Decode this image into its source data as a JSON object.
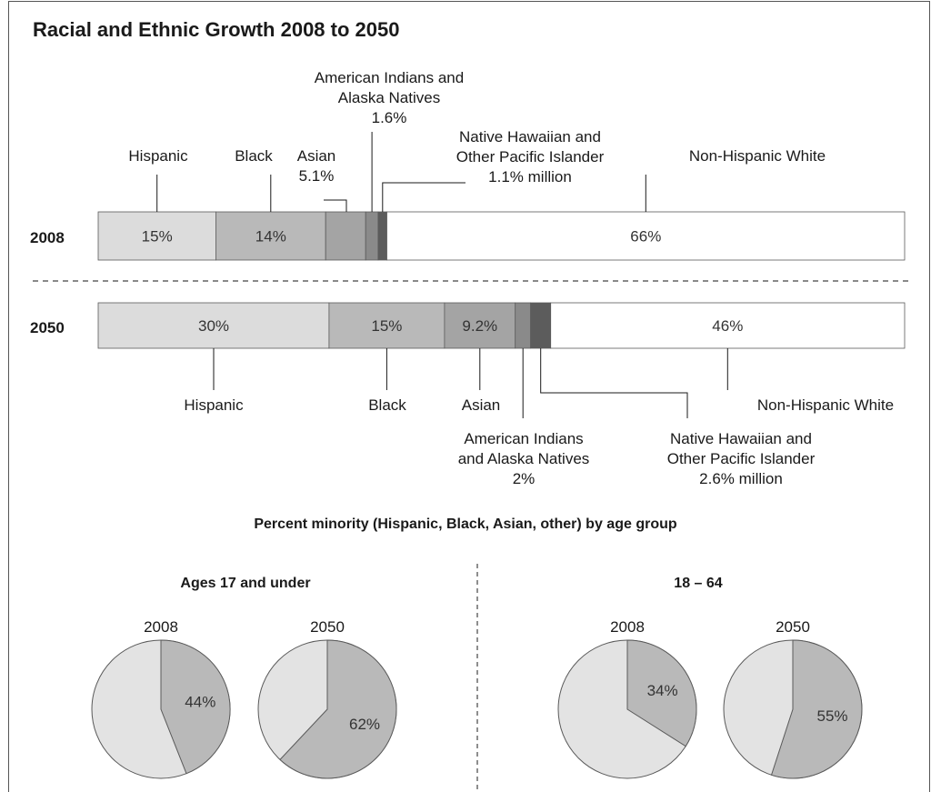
{
  "chart_data": [
    {
      "type": "bar",
      "title": "Racial and Ethnic Growth 2008 to 2050",
      "categories": [
        "Hispanic",
        "Black",
        "Asian",
        "American Indians and Alaska Natives",
        "Native Hawaiian and Other Pacific Islander",
        "Non-Hispanic White"
      ],
      "colors": [
        "#dcdcdc",
        "#b9b9b9",
        "#a4a4a4",
        "#8a8a8a",
        "#5c5c5c",
        "#ffffff"
      ],
      "series": [
        {
          "name": "2008",
          "values": [
            15,
            14,
            5.1,
            1.6,
            1.1,
            66
          ],
          "bar_labels": [
            "15%",
            "14%",
            "",
            "",
            "",
            "66%"
          ],
          "callouts": [
            {
              "lines": [
                "Hispanic"
              ]
            },
            {
              "lines": [
                "Black"
              ]
            },
            {
              "lines": [
                "Asian",
                "5.1%"
              ]
            },
            {
              "lines": [
                "American Indians and",
                "Alaska Natives",
                "1.6%"
              ]
            },
            {
              "lines": [
                "Native Hawaiian and",
                "Other Pacific Islander",
                "1.1% million"
              ]
            },
            {
              "lines": [
                "Non-Hispanic White"
              ]
            }
          ]
        },
        {
          "name": "2050",
          "values": [
            30,
            15,
            9.2,
            2,
            2.6,
            46
          ],
          "bar_labels": [
            "30%",
            "15%",
            "9.2%",
            "",
            "",
            "46%"
          ],
          "callouts": [
            {
              "lines": [
                "Hispanic"
              ]
            },
            {
              "lines": [
                "Black"
              ]
            },
            {
              "lines": [
                "Asian"
              ]
            },
            {
              "lines": [
                "American Indians",
                "and Alaska Natives",
                "2%"
              ]
            },
            {
              "lines": [
                "Native Hawaiian and",
                "Other Pacific Islander",
                "2.6% million"
              ]
            },
            {
              "lines": [
                "Non-Hispanic White"
              ]
            }
          ]
        }
      ]
    },
    {
      "type": "pie",
      "title": "Percent minority (Hispanic, Black, Asian, other) by age group",
      "groups": [
        {
          "name": "Ages 17 and under",
          "pies": [
            {
              "label": "2008",
              "minority": 44,
              "value_label": "44%"
            },
            {
              "label": "2050",
              "minority": 62,
              "value_label": "62%"
            }
          ]
        },
        {
          "name": "18 – 64",
          "pies": [
            {
              "label": "2008",
              "minority": 34,
              "value_label": "34%"
            },
            {
              "label": "2050",
              "minority": 55,
              "value_label": "55%"
            }
          ]
        }
      ],
      "colors": {
        "minority": "#b9b9b9",
        "rest": "#e3e3e3"
      }
    }
  ]
}
